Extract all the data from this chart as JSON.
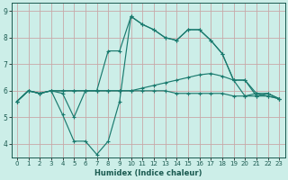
{
  "xlabel": "Humidex (Indice chaleur)",
  "x_values": [
    0,
    1,
    2,
    3,
    4,
    5,
    6,
    7,
    8,
    9,
    10,
    11,
    12,
    13,
    14,
    15,
    16,
    17,
    18,
    19,
    20,
    21,
    22,
    23
  ],
  "line1": [
    5.6,
    6.0,
    5.9,
    6.0,
    5.9,
    5.0,
    6.0,
    6.0,
    6.0,
    6.0,
    6.0,
    6.0,
    6.0,
    6.0,
    5.9,
    5.9,
    5.9,
    5.9,
    5.9,
    5.8,
    5.8,
    5.8,
    5.8,
    5.7
  ],
  "line2": [
    5.6,
    6.0,
    5.9,
    6.0,
    5.1,
    4.1,
    4.1,
    3.6,
    4.1,
    5.6,
    8.8,
    8.5,
    8.3,
    8.0,
    7.9,
    8.3,
    8.3,
    7.9,
    7.4,
    6.4,
    5.8,
    5.9,
    5.8,
    5.7
  ],
  "line3": [
    5.6,
    6.0,
    5.9,
    6.0,
    6.0,
    6.0,
    6.0,
    6.0,
    7.5,
    7.5,
    8.8,
    8.5,
    8.3,
    8.0,
    7.9,
    8.3,
    8.3,
    7.9,
    7.4,
    6.4,
    6.4,
    5.8,
    5.9,
    5.7
  ],
  "line4": [
    5.6,
    6.0,
    5.9,
    6.0,
    6.0,
    6.0,
    6.0,
    6.0,
    6.0,
    6.0,
    6.0,
    6.1,
    6.2,
    6.3,
    6.4,
    6.5,
    6.6,
    6.65,
    6.55,
    6.4,
    6.4,
    5.9,
    5.9,
    5.7
  ],
  "line_color": "#1a7a6e",
  "bg_color": "#cceee8",
  "grid_color": "#c8a8a8",
  "ylim": [
    3.5,
    9.3
  ],
  "yticks": [
    4,
    5,
    6,
    7,
    8,
    9
  ],
  "xlim": [
    -0.5,
    23.5
  ]
}
